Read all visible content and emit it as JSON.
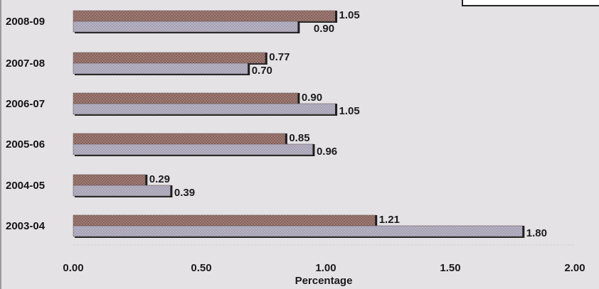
{
  "chart_data": {
    "type": "bar",
    "orientation": "horizontal",
    "categories": [
      "2008-09",
      "2007-08",
      "2006-07",
      "2005-06",
      "2004-05",
      "2003-04"
    ],
    "series": [
      {
        "values": [
          1.05,
          0.77,
          0.9,
          0.85,
          0.29,
          1.21
        ],
        "color": "#a8847c",
        "pattern": "crosshatch"
      },
      {
        "values": [
          0.9,
          0.7,
          1.05,
          0.96,
          0.39,
          1.8
        ],
        "color": "#b8b4c4",
        "pattern": "crosshatch"
      }
    ],
    "value_labels": [
      [
        "1.05",
        "0.77",
        "0.90",
        "0.85",
        "0.29",
        "1.21"
      ],
      [
        "0.90",
        "0.70",
        "1.05",
        "0.96",
        "0.39",
        "1.80"
      ]
    ],
    "xlabel": "Percentage",
    "xlim": [
      0,
      2
    ],
    "xticks": [
      "0.00",
      "0.50",
      "1.00",
      "1.50",
      "2.00"
    ],
    "grid": false,
    "legend": "top-right (partially visible)"
  }
}
